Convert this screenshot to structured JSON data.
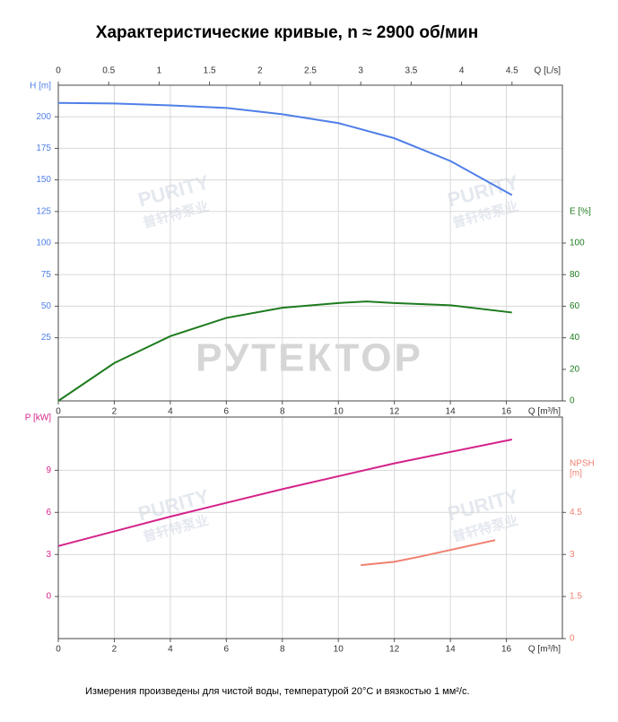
{
  "title": "Характеристические кривые, n ≈ 2900 об/мин",
  "note": "Измерения произведены для чистой воды, температурой 20°C и вязкостью 1 мм²/с.",
  "watermarks": {
    "brand": "PURITY",
    "brand_cn": "普轩特泵业",
    "main": "РУТЕКТОР"
  },
  "chart_data": [
    {
      "type": "line",
      "xlabel": "Q [m³/h]",
      "xlim": [
        0,
        18
      ],
      "xticks": [
        0,
        2,
        4,
        6,
        8,
        10,
        12,
        14,
        16
      ],
      "x2label": "Q [L/s]",
      "x2lim": [
        0,
        5
      ],
      "x2ticks": [
        0,
        0.5,
        1,
        1.5,
        2,
        2.5,
        3,
        3.5,
        4,
        4.5
      ],
      "ylabel": "H [m]",
      "ylim": [
        -25,
        225
      ],
      "yticks": [
        25,
        50,
        75,
        100,
        125,
        150,
        175,
        200
      ],
      "y2label": "E [%]",
      "y2lim": [
        0,
        200
      ],
      "y2ticks": [
        0,
        20,
        40,
        60,
        80,
        100
      ],
      "grid": true,
      "series": [
        {
          "name": "H",
          "color": "#4f7fe8",
          "axis": "y",
          "x": [
            0,
            2,
            4,
            6,
            8,
            10,
            12,
            14,
            16.2
          ],
          "values": [
            211,
            210.5,
            209,
            207,
            202,
            195,
            183,
            165,
            138
          ]
        },
        {
          "name": "E",
          "color": "#1e7b1e",
          "axis": "y2",
          "x": [
            0,
            2,
            4,
            6,
            8,
            10,
            11,
            12,
            14,
            16.2
          ],
          "values": [
            0,
            24,
            41,
            52.6,
            59,
            62,
            63,
            62,
            60.6,
            56
          ]
        }
      ]
    },
    {
      "type": "line",
      "xlabel": "Q [m³/h]",
      "xlim": [
        0,
        18
      ],
      "xticks": [
        0,
        2,
        4,
        6,
        8,
        10,
        12,
        14,
        16
      ],
      "ylabel": "P [kW]",
      "ylim": [
        -3,
        12.8
      ],
      "yticks": [
        0,
        3,
        6,
        9
      ],
      "y2label": [
        "NPSH",
        "[m]"
      ],
      "y2lim": [
        0,
        7.9
      ],
      "y2ticks": [
        0,
        1.5,
        3,
        4.5
      ],
      "grid": true,
      "series": [
        {
          "name": "P",
          "color": "#d4238a",
          "axis": "y",
          "x": [
            0,
            4,
            8,
            12,
            16.2
          ],
          "values": [
            3.6,
            5.7,
            7.66,
            9.5,
            11.2
          ]
        },
        {
          "name": "NPSH",
          "color": "#f08070",
          "axis": "y2",
          "x": [
            10.8,
            12,
            13,
            14,
            15,
            15.6
          ],
          "values": [
            2.62,
            2.74,
            2.94,
            3.16,
            3.38,
            3.51
          ]
        }
      ]
    }
  ]
}
